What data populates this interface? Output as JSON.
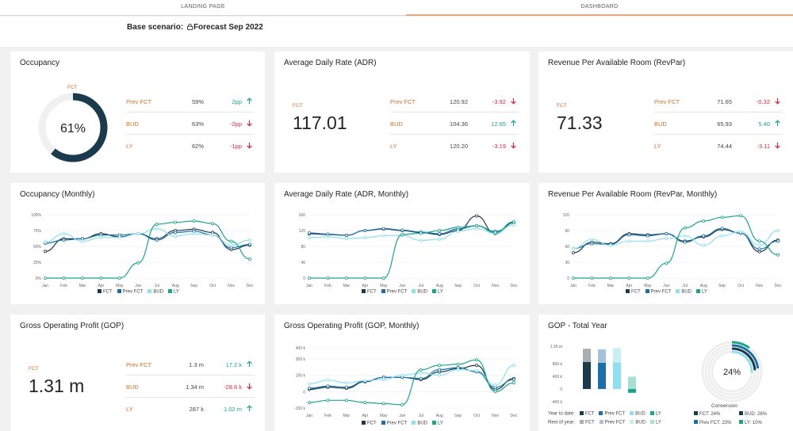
{
  "tabs": [
    {
      "label": "LANDING PAGE"
    },
    {
      "label": "DASHBOARD"
    }
  ],
  "scenario": {
    "label": "Base scenario:",
    "value": "Forecast Sep 2022"
  },
  "colors": {
    "fct": "#1b3a4b",
    "prev_fct": "#1d6fa5",
    "bud": "#8fe0ef",
    "ly": "#1aa58b",
    "accent": "#d86f28",
    "up": "#1aa58b",
    "down": "#d8263c"
  },
  "legend": [
    {
      "name": "FCT",
      "color": "#1b3a4b"
    },
    {
      "name": "Prev FCT",
      "color": "#1d6fa5"
    },
    {
      "name": "BUD",
      "color": "#8fe0ef"
    },
    {
      "name": "LY",
      "color": "#1aa58b"
    }
  ],
  "kpis": {
    "occupancy": {
      "title": "Occupancy",
      "fct_label": "FCT",
      "value": "61%",
      "fill_fraction": 0.61,
      "rows": [
        {
          "label": "Prev FCT",
          "value": "59%",
          "delta": "2pp",
          "dir": "up"
        },
        {
          "label": "BUD",
          "value": "63%",
          "delta": "-2pp",
          "dir": "down"
        },
        {
          "label": "LY",
          "value": "62%",
          "delta": "-1pp",
          "dir": "down"
        }
      ]
    },
    "adr": {
      "title": "Average Daily Rate (ADR)",
      "fct_label": "FCT",
      "value": "117.01",
      "rows": [
        {
          "label": "Prev FCT",
          "value": "120.92",
          "delta": "-3.92",
          "dir": "down"
        },
        {
          "label": "BUD",
          "value": "104.36",
          "delta": "12.65",
          "dir": "up"
        },
        {
          "label": "LY",
          "value": "120.20",
          "delta": "-3.19",
          "dir": "down"
        }
      ]
    },
    "revpar": {
      "title": "Revenue Per Available Room (RevPar)",
      "fct_label": "FCT",
      "value": "71.33",
      "rows": [
        {
          "label": "Prev FCT",
          "value": "71.65",
          "delta": "-0.32",
          "dir": "down"
        },
        {
          "label": "BUD",
          "value": "65.93",
          "delta": "5.40",
          "dir": "up"
        },
        {
          "label": "LY",
          "value": "74.44",
          "delta": "-3.11",
          "dir": "down"
        }
      ]
    },
    "gop": {
      "title": "Gross Operating Profit (GOP)",
      "fct_label": "FCT",
      "value": "1.31 m",
      "rows": [
        {
          "label": "Prev FCT",
          "value": "1.3 m",
          "delta": "17.2 k",
          "dir": "up"
        },
        {
          "label": "BUD",
          "value": "1.34 m",
          "delta": "-28.6 k",
          "dir": "down"
        },
        {
          "label": "LY",
          "value": "287 k",
          "delta": "1.02 m",
          "dir": "up"
        }
      ]
    }
  },
  "chart_titles": {
    "occ_monthly": "Occupancy (Monthly)",
    "adr_monthly": "Average Daily Rate (ADR, Monthly)",
    "revpar_monthly": "Revenue Per Available Room (RevPar, Monthly)",
    "gop_monthly": "Gross Operating Profit (GOP, Monthly)",
    "gop_total": "GOP - Total Year"
  },
  "chart_data": [
    {
      "id": "occ_monthly",
      "type": "line",
      "categories": [
        "Jan",
        "Feb",
        "Mar",
        "Apr",
        "May",
        "Jun",
        "Jul",
        "Aug",
        "Sep",
        "Oct",
        "Nov",
        "Dec"
      ],
      "ylim": [
        0,
        100
      ],
      "yticks": [
        0,
        25,
        50,
        75,
        100
      ],
      "ytick_labels": [
        "0%",
        "25%",
        "50%",
        "75%",
        "100%"
      ],
      "series": [
        {
          "name": "FCT",
          "values": [
            42,
            62,
            62,
            70,
            65,
            70,
            62,
            75,
            77,
            72,
            45,
            52
          ]
        },
        {
          "name": "Prev FCT",
          "values": [
            55,
            60,
            62,
            68,
            68,
            70,
            60,
            72,
            74,
            68,
            48,
            53
          ]
        },
        {
          "name": "BUD",
          "values": [
            57,
            70,
            58,
            64,
            64,
            70,
            78,
            66,
            70,
            68,
            52,
            60
          ]
        },
        {
          "name": "LY",
          "values": [
            0,
            0,
            0,
            0,
            0,
            24,
            85,
            88,
            90,
            86,
            58,
            30
          ]
        }
      ]
    },
    {
      "id": "adr_monthly",
      "type": "line",
      "categories": [
        "Jan",
        "Feb",
        "Mar",
        "Apr",
        "May",
        "Jun",
        "Jul",
        "Aug",
        "Sep",
        "Oct",
        "Nov",
        "Dec"
      ],
      "ylim": [
        0,
        160
      ],
      "yticks": [
        0,
        40,
        80,
        120,
        160
      ],
      "ytick_labels": [
        "0",
        "40",
        "80",
        "120",
        "160"
      ],
      "series": [
        {
          "name": "FCT",
          "values": [
            112,
            110,
            108,
            120,
            124,
            120,
            115,
            110,
            120,
            157,
            112,
            140
          ]
        },
        {
          "name": "Prev FCT",
          "values": [
            114,
            111,
            108,
            120,
            125,
            121,
            116,
            112,
            124,
            132,
            118,
            135
          ]
        },
        {
          "name": "BUD",
          "values": [
            102,
            104,
            100,
            102,
            107,
            108,
            95,
            98,
            118,
            125,
            113,
            135
          ]
        },
        {
          "name": "LY",
          "values": [
            0,
            0,
            0,
            0,
            0,
            110,
            113,
            120,
            128,
            132,
            115,
            142
          ]
        }
      ]
    },
    {
      "id": "revpar_monthly",
      "type": "line",
      "categories": [
        "Jan",
        "Feb",
        "Mar",
        "Apr",
        "May",
        "Jun",
        "Jul",
        "Aug",
        "Sep",
        "Oct",
        "Nov",
        "Dec"
      ],
      "ylim": [
        0,
        120
      ],
      "yticks": [
        0,
        30,
        60,
        90,
        120
      ],
      "ytick_labels": [
        "0",
        "30",
        "60",
        "90",
        "120"
      ],
      "series": [
        {
          "name": "FCT",
          "values": [
            48,
            68,
            65,
            84,
            82,
            84,
            70,
            78,
            92,
            85,
            50,
            72
          ]
        },
        {
          "name": "Prev FCT",
          "values": [
            56,
            65,
            64,
            82,
            80,
            84,
            68,
            80,
            94,
            85,
            55,
            70
          ]
        },
        {
          "name": "BUD",
          "values": [
            56,
            73,
            62,
            70,
            70,
            75,
            80,
            62,
            80,
            88,
            62,
            90
          ]
        },
        {
          "name": "LY",
          "values": [
            0,
            0,
            0,
            0,
            0,
            28,
            95,
            108,
            115,
            118,
            70,
            44
          ]
        }
      ]
    },
    {
      "id": "gop_monthly",
      "type": "line",
      "categories": [
        "Jan",
        "Feb",
        "Mar",
        "Apr",
        "May",
        "Jun",
        "Jul",
        "Aug",
        "Sep",
        "Oct",
        "Nov",
        "Dec"
      ],
      "ylim": [
        -150,
        400
      ],
      "yticks": [
        -150,
        0,
        150,
        300,
        400
      ],
      "ytick_labels": [
        "-150 k",
        "0",
        "150 k",
        "300 k",
        "400 k"
      ],
      "series": [
        {
          "name": "FCT",
          "values": [
            20,
            40,
            30,
            90,
            130,
            130,
            110,
            180,
            210,
            240,
            20,
            120
          ]
        },
        {
          "name": "Prev FCT",
          "values": [
            30,
            50,
            40,
            95,
            130,
            130,
            120,
            200,
            220,
            180,
            40,
            110
          ]
        },
        {
          "name": "BUD",
          "values": [
            70,
            105,
            80,
            100,
            110,
            150,
            170,
            150,
            200,
            190,
            60,
            240
          ]
        },
        {
          "name": "LY",
          "values": [
            -100,
            -80,
            -80,
            -100,
            -110,
            -120,
            200,
            240,
            250,
            290,
            0,
            80
          ]
        }
      ]
    },
    {
      "id": "gop_total",
      "type": "bar",
      "categories": [
        "FCT",
        "Prev FCT",
        "BUD",
        "LY"
      ],
      "ylim": [
        -400,
        1350
      ],
      "yticks": [
        -400,
        0,
        400,
        800,
        1350
      ],
      "ytick_labels": [
        "-400 k",
        "0",
        "400 k",
        "800 k",
        "1.35 m"
      ],
      "series": [
        {
          "name": "Year to date",
          "values": [
            850,
            830,
            840,
            -120
          ]
        },
        {
          "name": "Rest of year",
          "values": [
            420,
            420,
            450,
            390
          ]
        }
      ]
    }
  ],
  "gop_total": {
    "ytd_label": "Year to date:",
    "rest_label": "Rest of year:",
    "legend_names": [
      "FCT",
      "Prev FCT",
      "BUD",
      "LY"
    ],
    "conversion_value": "24%",
    "conversion_label": "Conversion",
    "conversion_rings": [
      0.24,
      0.23,
      0.26,
      0.1
    ],
    "conversion_legend": [
      {
        "label": "FCT: 24%",
        "color": "#1b3a4b"
      },
      {
        "label": "BUD: 26%",
        "color": "#1b3a4b"
      },
      {
        "label": "Prev FCT: 23%",
        "color": "#1d6fa5"
      },
      {
        "label": "LY: 10%",
        "color": "#1aa58b"
      }
    ]
  }
}
